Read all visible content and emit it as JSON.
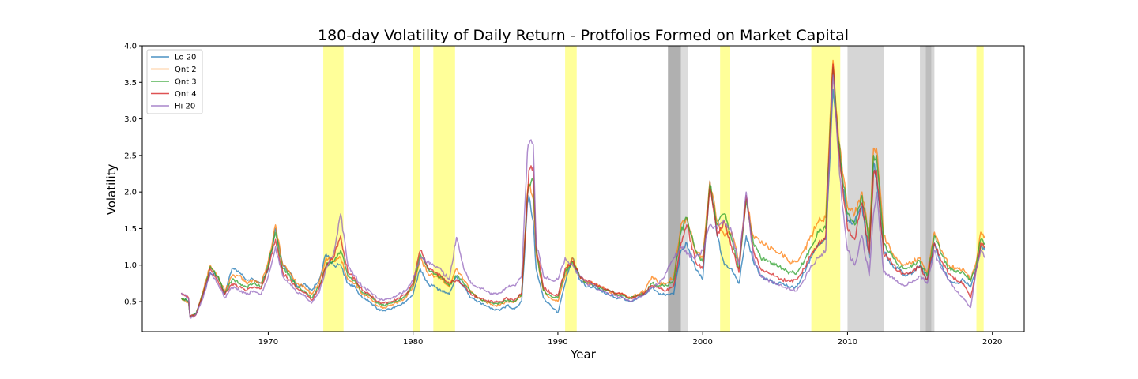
{
  "chart_data": {
    "type": "line",
    "title": "180-day Volatility of Daily Return - Protfolios Formed on Market Capital",
    "xlabel": "Year",
    "ylabel": "Volatility",
    "xlim": [
      1961.3,
      2022.2
    ],
    "ylim": [
      0.09,
      4.0
    ],
    "xticks": [
      1970,
      1980,
      1990,
      2000,
      2010,
      2020
    ],
    "xtick_labels": [
      "1970",
      "1980",
      "1990",
      "2000",
      "2010",
      "2020"
    ],
    "yticks": [
      0.5,
      1.0,
      1.5,
      2.0,
      2.5,
      3.0,
      3.5,
      4.0
    ],
    "ytick_labels": [
      "0.5",
      "1.0",
      "1.5",
      "2.0",
      "2.5",
      "3.0",
      "3.5",
      "4.0"
    ],
    "grid": false,
    "legend_position": "top-left",
    "shaded_regions": [
      {
        "start": 1973.8,
        "end": 1975.2,
        "color": "#ffff99"
      },
      {
        "start": 1980.0,
        "end": 1980.5,
        "color": "#ffff99"
      },
      {
        "start": 1981.4,
        "end": 1982.9,
        "color": "#ffff99"
      },
      {
        "start": 1990.5,
        "end": 1991.3,
        "color": "#ffff99"
      },
      {
        "start": 1997.6,
        "end": 1998.5,
        "color": "#b0b0b0"
      },
      {
        "start": 1998.5,
        "end": 1999.0,
        "color": "#dcdcdc"
      },
      {
        "start": 2001.2,
        "end": 2001.9,
        "color": "#ffff99"
      },
      {
        "start": 2007.5,
        "end": 2009.5,
        "color": "#ffff99"
      },
      {
        "start": 2010.0,
        "end": 2012.5,
        "color": "#d6d6d6"
      },
      {
        "start": 2015.0,
        "end": 2015.4,
        "color": "#d6d6d6"
      },
      {
        "start": 2015.4,
        "end": 2015.8,
        "color": "#bdbdbd"
      },
      {
        "start": 2015.8,
        "end": 2016.0,
        "color": "#d6d6d6"
      },
      {
        "start": 2018.9,
        "end": 2019.4,
        "color": "#ffff99"
      }
    ],
    "x": [
      1964.0,
      1964.5,
      1964.6,
      1965.0,
      1965.5,
      1966.0,
      1966.5,
      1967.0,
      1967.5,
      1968.0,
      1968.5,
      1969.0,
      1969.5,
      1970.0,
      1970.5,
      1971.0,
      1971.5,
      1972.0,
      1972.5,
      1973.0,
      1973.5,
      1974.0,
      1974.5,
      1975.0,
      1975.5,
      1976.0,
      1976.5,
      1977.0,
      1977.5,
      1978.0,
      1978.5,
      1979.0,
      1979.5,
      1980.0,
      1980.5,
      1981.0,
      1981.5,
      1982.0,
      1982.5,
      1983.0,
      1983.5,
      1984.0,
      1984.5,
      1985.0,
      1985.5,
      1986.0,
      1986.5,
      1987.0,
      1987.5,
      1987.9,
      1988.0,
      1988.3,
      1988.5,
      1989.0,
      1989.5,
      1990.0,
      1990.5,
      1991.0,
      1991.5,
      1992.0,
      1992.5,
      1993.0,
      1993.5,
      1994.0,
      1994.5,
      1995.0,
      1995.5,
      1996.0,
      1996.5,
      1997.0,
      1997.5,
      1998.0,
      1998.5,
      1998.9,
      1999.5,
      2000.0,
      2000.5,
      2001.0,
      2001.5,
      2002.0,
      2002.5,
      2003.0,
      2003.5,
      2004.0,
      2004.5,
      2005.0,
      2005.5,
      2006.0,
      2006.5,
      2007.0,
      2007.5,
      2008.0,
      2008.5,
      2008.8,
      2009.0,
      2009.3,
      2009.6,
      2010.0,
      2010.5,
      2011.0,
      2011.5,
      2011.8,
      2012.0,
      2012.5,
      2013.0,
      2013.5,
      2014.0,
      2014.5,
      2015.0,
      2015.5,
      2016.0,
      2016.5,
      2017.0,
      2017.5,
      2018.0,
      2018.5,
      2018.9,
      2019.2,
      2019.5
    ],
    "series": [
      {
        "name": "Lo 20",
        "color": "#1f77b4",
        "values": [
          0.55,
          0.5,
          0.3,
          0.32,
          0.6,
          0.9,
          0.85,
          0.6,
          0.95,
          0.9,
          0.8,
          0.8,
          0.75,
          0.95,
          1.5,
          1.0,
          0.9,
          0.7,
          0.75,
          0.65,
          0.8,
          1.15,
          1.0,
          1.0,
          0.75,
          0.7,
          0.55,
          0.5,
          0.4,
          0.38,
          0.4,
          0.45,
          0.5,
          0.6,
          0.95,
          0.75,
          0.7,
          0.65,
          0.6,
          0.85,
          0.7,
          0.55,
          0.5,
          0.45,
          0.4,
          0.38,
          0.45,
          0.4,
          0.5,
          1.85,
          1.95,
          1.6,
          0.95,
          0.55,
          0.45,
          0.35,
          0.75,
          1.1,
          0.8,
          0.7,
          0.7,
          0.65,
          0.6,
          0.55,
          0.55,
          0.5,
          0.55,
          0.6,
          0.7,
          0.6,
          0.6,
          0.6,
          1.2,
          1.3,
          0.95,
          0.8,
          2.15,
          1.4,
          1.0,
          0.95,
          0.75,
          1.4,
          1.05,
          0.85,
          0.8,
          0.75,
          0.75,
          0.7,
          0.7,
          0.9,
          1.1,
          1.3,
          1.35,
          2.5,
          3.4,
          2.8,
          2.2,
          1.6,
          1.6,
          1.8,
          1.1,
          2.4,
          2.2,
          1.2,
          1.0,
          0.95,
          0.85,
          0.9,
          1.0,
          0.8,
          1.3,
          1.0,
          0.8,
          0.75,
          0.8,
          0.7,
          0.95,
          1.25,
          1.2
        ]
      },
      {
        "name": "Qnt 2",
        "color": "#ff7f0e",
        "values": [
          0.55,
          0.48,
          0.3,
          0.33,
          0.65,
          1.0,
          0.85,
          0.65,
          0.85,
          0.85,
          0.75,
          0.8,
          0.75,
          1.05,
          1.55,
          1.0,
          0.9,
          0.75,
          0.7,
          0.6,
          0.75,
          1.1,
          1.05,
          1.1,
          0.8,
          0.75,
          0.6,
          0.55,
          0.45,
          0.42,
          0.45,
          0.5,
          0.55,
          0.7,
          1.1,
          0.9,
          0.85,
          0.8,
          0.7,
          0.95,
          0.8,
          0.65,
          0.55,
          0.5,
          0.45,
          0.45,
          0.5,
          0.5,
          0.6,
          2.0,
          2.1,
          1.9,
          1.15,
          0.65,
          0.55,
          0.5,
          0.85,
          1.1,
          0.85,
          0.75,
          0.75,
          0.7,
          0.65,
          0.6,
          0.6,
          0.55,
          0.6,
          0.65,
          0.85,
          0.75,
          0.75,
          0.85,
          1.55,
          1.65,
          1.2,
          1.1,
          2.15,
          1.6,
          1.4,
          1.45,
          1.05,
          1.9,
          1.4,
          1.3,
          1.25,
          1.2,
          1.15,
          1.05,
          1.05,
          1.2,
          1.4,
          1.6,
          1.65,
          3.0,
          3.8,
          3.0,
          2.4,
          1.8,
          1.7,
          2.0,
          1.4,
          2.6,
          2.6,
          1.4,
          1.2,
          1.05,
          1.0,
          1.05,
          1.1,
          0.9,
          1.45,
          1.2,
          1.0,
          0.95,
          0.95,
          0.8,
          1.05,
          1.45,
          1.4
        ]
      },
      {
        "name": "Qnt 3",
        "color": "#2ca02c",
        "values": [
          0.55,
          0.5,
          0.3,
          0.33,
          0.62,
          0.98,
          0.85,
          0.62,
          0.8,
          0.75,
          0.7,
          0.75,
          0.7,
          1.0,
          1.45,
          0.95,
          0.85,
          0.7,
          0.65,
          0.55,
          0.7,
          1.0,
          1.05,
          1.2,
          0.85,
          0.78,
          0.62,
          0.58,
          0.48,
          0.45,
          0.48,
          0.52,
          0.58,
          0.72,
          1.15,
          0.95,
          0.88,
          0.82,
          0.72,
          0.85,
          0.75,
          0.62,
          0.55,
          0.5,
          0.48,
          0.48,
          0.52,
          0.5,
          0.6,
          1.95,
          2.1,
          2.15,
          1.2,
          0.65,
          0.58,
          0.55,
          0.9,
          1.05,
          0.85,
          0.75,
          0.72,
          0.68,
          0.65,
          0.6,
          0.58,
          0.55,
          0.58,
          0.62,
          0.75,
          0.72,
          0.72,
          0.8,
          1.45,
          1.65,
          1.2,
          1.05,
          2.1,
          1.55,
          1.7,
          1.35,
          0.95,
          1.9,
          1.3,
          1.1,
          1.05,
          1.0,
          0.95,
          0.9,
          0.9,
          1.05,
          1.25,
          1.45,
          1.5,
          2.9,
          3.7,
          2.9,
          2.3,
          1.7,
          1.55,
          1.95,
          1.3,
          2.5,
          2.5,
          1.3,
          1.15,
          1.0,
          0.95,
          1.0,
          1.05,
          0.85,
          1.4,
          1.15,
          0.95,
          0.9,
          0.9,
          0.78,
          1.0,
          1.35,
          1.3
        ]
      },
      {
        "name": "Qnt 4",
        "color": "#d62728",
        "values": [
          0.62,
          0.55,
          0.3,
          0.32,
          0.6,
          0.95,
          0.8,
          0.6,
          0.75,
          0.7,
          0.65,
          0.7,
          0.68,
          0.95,
          1.35,
          0.9,
          0.8,
          0.68,
          0.62,
          0.52,
          0.68,
          0.98,
          1.1,
          1.4,
          0.9,
          0.8,
          0.65,
          0.6,
          0.5,
          0.48,
          0.5,
          0.55,
          0.6,
          0.75,
          1.2,
          0.98,
          0.9,
          0.85,
          0.75,
          0.8,
          0.72,
          0.6,
          0.55,
          0.52,
          0.5,
          0.5,
          0.55,
          0.52,
          0.62,
          1.95,
          2.3,
          2.35,
          1.25,
          0.7,
          0.62,
          0.58,
          0.95,
          1.05,
          0.85,
          0.78,
          0.75,
          0.7,
          0.65,
          0.62,
          0.6,
          0.55,
          0.58,
          0.62,
          0.72,
          0.68,
          0.65,
          0.72,
          1.3,
          1.55,
          1.05,
          0.95,
          2.05,
          1.4,
          1.6,
          1.25,
          0.9,
          1.95,
          1.2,
          0.95,
          0.9,
          0.85,
          0.8,
          0.78,
          0.8,
          0.95,
          1.15,
          1.3,
          1.4,
          2.8,
          3.75,
          2.8,
          2.2,
          1.5,
          1.35,
          1.85,
          1.15,
          2.25,
          2.3,
          1.15,
          1.05,
          0.92,
          0.88,
          0.92,
          0.98,
          0.8,
          1.3,
          1.05,
          0.88,
          0.8,
          0.75,
          0.55,
          0.95,
          1.3,
          1.25
        ]
      },
      {
        "name": "Hi 20",
        "color": "#9467bd",
        "values": [
          0.62,
          0.55,
          0.28,
          0.32,
          0.55,
          0.9,
          0.75,
          0.55,
          0.7,
          0.65,
          0.6,
          0.65,
          0.6,
          0.85,
          1.25,
          0.85,
          0.75,
          0.62,
          0.58,
          0.48,
          0.62,
          0.95,
          1.15,
          1.7,
          1.0,
          0.85,
          0.7,
          0.65,
          0.55,
          0.52,
          0.55,
          0.6,
          0.65,
          0.8,
          1.1,
          1.05,
          0.98,
          0.92,
          0.8,
          1.38,
          0.95,
          0.75,
          0.7,
          0.65,
          0.6,
          0.62,
          0.7,
          0.72,
          0.85,
          2.55,
          2.65,
          2.65,
          1.3,
          0.85,
          0.8,
          0.8,
          1.1,
          1.0,
          0.85,
          0.75,
          0.72,
          0.65,
          0.6,
          0.58,
          0.55,
          0.5,
          0.55,
          0.6,
          0.7,
          0.75,
          0.9,
          1.1,
          1.25,
          1.15,
          1.1,
          1.2,
          1.55,
          1.5,
          1.6,
          1.45,
          1.0,
          2.0,
          1.1,
          0.85,
          0.8,
          0.75,
          0.7,
          0.68,
          0.65,
          0.8,
          1.0,
          1.1,
          1.2,
          2.7,
          3.6,
          2.7,
          1.9,
          1.2,
          1.0,
          1.4,
          0.85,
          1.7,
          2.0,
          0.9,
          0.85,
          0.75,
          0.72,
          0.78,
          0.85,
          0.75,
          1.2,
          0.95,
          0.8,
          0.65,
          0.55,
          0.42,
          0.95,
          1.2,
          1.1
        ]
      }
    ]
  }
}
